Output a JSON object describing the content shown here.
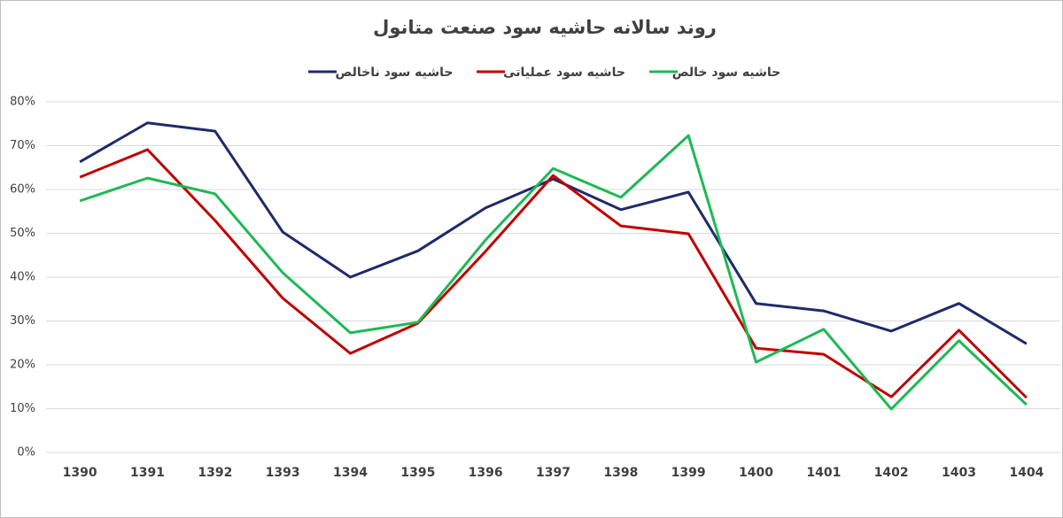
{
  "chart_data": {
    "type": "line",
    "title": "روند سالانه حاشیه سود صنعت متانول",
    "categories": [
      "1390",
      "1391",
      "1392",
      "1393",
      "1394",
      "1395",
      "1396",
      "1397",
      "1398",
      "1399",
      "1400",
      "1401",
      "1402",
      "1403",
      "1404"
    ],
    "series": [
      {
        "name": "حاشیه سود ناخالص",
        "color": "#1f2a6b",
        "values": [
          66.3,
          75.2,
          73.3,
          50.3,
          40,
          46,
          55.8,
          62.4,
          55.4,
          59.4,
          34,
          32.3,
          27.7,
          34,
          24.8
        ]
      },
      {
        "name": "حاشیه سود عملیاتی",
        "color": "#c00000",
        "values": [
          62.8,
          69.1,
          52.9,
          35.2,
          22.6,
          29.5,
          45.9,
          63.2,
          51.7,
          49.9,
          23.8,
          22.4,
          12.7,
          27.9,
          12.5
        ]
      },
      {
        "name": "حاشیه سود خالص",
        "color": "#1db954",
        "values": [
          57.4,
          62.6,
          59,
          41,
          27.3,
          29.7,
          48.5,
          64.8,
          58.2,
          72.3,
          20.6,
          28.1,
          9.9,
          25.5,
          10.9
        ]
      }
    ],
    "ylim": [
      0,
      80
    ],
    "yticks": [
      {
        "value": 0,
        "label": "0%"
      },
      {
        "value": 10,
        "label": "10%"
      },
      {
        "value": 20,
        "label": "20%"
      },
      {
        "value": 30,
        "label": "30%"
      },
      {
        "value": 40,
        "label": "40%"
      },
      {
        "value": 50,
        "label": "50%"
      },
      {
        "value": 60,
        "label": "60%"
      },
      {
        "value": 70,
        "label": "70%"
      },
      {
        "value": 80,
        "label": "80%"
      }
    ],
    "grid": true
  }
}
